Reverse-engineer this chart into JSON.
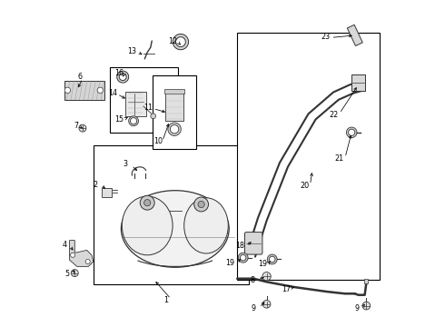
{
  "background": "#ffffff",
  "line_color": "#000000",
  "component_color": "#333333",
  "label_color": "#000000",
  "fig_width": 4.9,
  "fig_height": 3.6,
  "dpi": 100
}
